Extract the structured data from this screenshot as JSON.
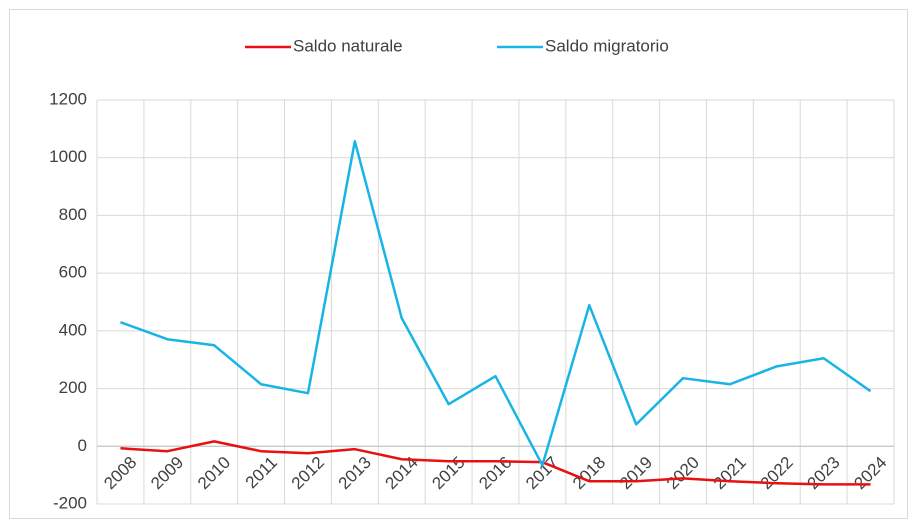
{
  "chart_data": {
    "type": "line",
    "categories": [
      "2008",
      "2009",
      "2010",
      "2011",
      "2012",
      "2013",
      "2014",
      "2015",
      "2016",
      "2017",
      "2018",
      "2019",
      "2020",
      "2021",
      "2022",
      "2023",
      "2024"
    ],
    "series": [
      {
        "name": "Saldo naturale",
        "color": "#e81010",
        "values": [
          -7,
          -17,
          17,
          -17,
          -24,
          -10,
          -45,
          -52,
          -52,
          -55,
          -121,
          -121,
          -111,
          -121,
          -128,
          -132,
          -132
        ]
      },
      {
        "name": "Saldo migratorio",
        "color": "#19b4e6",
        "values": [
          430,
          371,
          350,
          215,
          184,
          1057,
          444,
          146,
          243,
          -66,
          489,
          76,
          236,
          215,
          277,
          305,
          191
        ]
      }
    ],
    "ylim": [
      -200,
      1200
    ],
    "yticks": [
      -200,
      0,
      200,
      400,
      600,
      800,
      1000,
      1200
    ],
    "grid": true,
    "legend": "top"
  }
}
